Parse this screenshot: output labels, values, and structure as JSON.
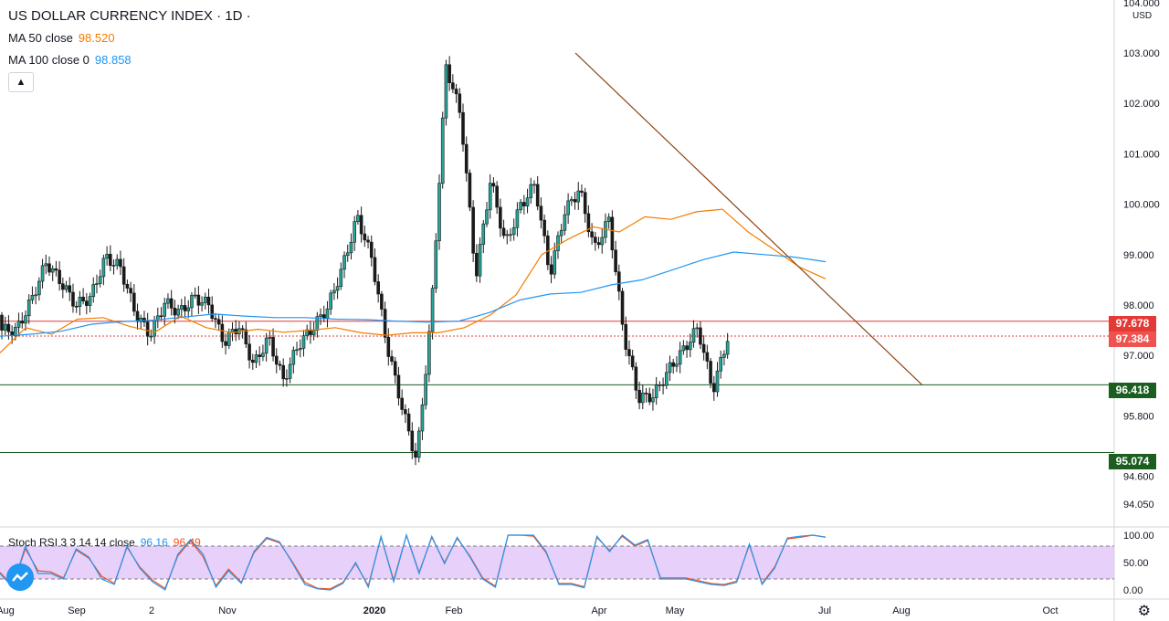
{
  "header": {
    "title": "US DOLLAR CURRENCY INDEX · 1D ·",
    "ma50_label": "MA 50 close",
    "ma50_value": "98.520",
    "ma100_label": "MA 100 close 0",
    "ma100_value": "98.858",
    "collapse_icon": "chevron-up-icon"
  },
  "currency": "USD",
  "colors": {
    "up": "#26a69a",
    "down": "#ef5350",
    "candle_body": "#1a1a1a",
    "ma50": "#f57c00",
    "ma100": "#2196f3",
    "trendline": "#8b4513",
    "resistance": "#e53935",
    "support": "#1b5e20",
    "stoch_k": "#2196f3",
    "stoch_d": "#f4511e",
    "stoch_band": "#e1c4f7"
  },
  "price_labels": {
    "resistance": "97.678",
    "last": "97.384",
    "support1": "96.418",
    "support2": "95.074"
  },
  "stoch": {
    "label": "Stoch RSI 3 3 14 14 close",
    "k_value": "96.16",
    "d_value": "96.49",
    "ticks": [
      "100.00",
      "50.00",
      "0.00"
    ]
  },
  "x_labels": [
    "Aug",
    "Sep",
    "2",
    "Nov",
    "2020",
    "Feb",
    "Apr",
    "May",
    "Jul",
    "Aug",
    "Oct"
  ],
  "chart_data": {
    "type": "candlestick",
    "title": "US DOLLAR CURRENCY INDEX · 1D",
    "y_ticks": [
      "104.000",
      "103.000",
      "102.000",
      "101.000",
      "100.000",
      "99.000",
      "98.000",
      "97.000",
      "95.800",
      "94.600",
      "94.050"
    ],
    "waypoints": [
      [
        97.8,
        97.2
      ],
      [
        97.6,
        97.4
      ],
      [
        98.4,
        97.8
      ],
      [
        99.2,
        98.5
      ],
      [
        98.7,
        98.2
      ],
      [
        98.4,
        97.6
      ],
      [
        98.3,
        98.0
      ],
      [
        99.4,
        98.5
      ],
      [
        98.9,
        98.6
      ],
      [
        98.2,
        97.5
      ],
      [
        97.4,
        97.4
      ],
      [
        98.2,
        97.9
      ],
      [
        98.0,
        97.7
      ],
      [
        98.3,
        98.0
      ],
      [
        98.1,
        97.9
      ],
      [
        97.3,
        97.2
      ],
      [
        97.7,
        97.5
      ],
      [
        96.9,
        96.7
      ],
      [
        97.6,
        97.1
      ],
      [
        96.5,
        96.5
      ],
      [
        97.3,
        97.1
      ],
      [
        97.7,
        97.4
      ],
      [
        98.2,
        97.7
      ],
      [
        99.0,
        98.5
      ],
      [
        99.8,
        99.7
      ],
      [
        99.0,
        98.8
      ],
      [
        97.4,
        97.0
      ],
      [
        96.2,
        95.8
      ],
      [
        95.0,
        94.8
      ],
      [
        98.5,
        97.2
      ],
      [
        102.9,
        102.6
      ],
      [
        102.0,
        101.5
      ],
      [
        98.7,
        98.4
      ],
      [
        100.6,
        100.4
      ],
      [
        99.4,
        99.0
      ],
      [
        100.1,
        99.8
      ],
      [
        100.5,
        100.3
      ],
      [
        98.6,
        98.6
      ],
      [
        100.0,
        99.7
      ],
      [
        100.4,
        100.2
      ],
      [
        99.2,
        99.0
      ],
      [
        99.8,
        99.6
      ],
      [
        97.6,
        97.2
      ],
      [
        96.2,
        96.1
      ],
      [
        96.3,
        96.1
      ],
      [
        96.8,
        96.6
      ],
      [
        97.2,
        97.0
      ],
      [
        97.6,
        97.5
      ],
      [
        96.3,
        96.3
      ],
      [
        97.4,
        97.3
      ]
    ],
    "ma50": [
      [
        97.05,
        97.55
      ],
      [
        97.42,
        97.72
      ],
      [
        97.75,
        97.58
      ],
      [
        97.46,
        97.78
      ],
      [
        97.55,
        97.45
      ],
      [
        97.52,
        97.46
      ],
      [
        97.5,
        97.55
      ],
      [
        97.45,
        97.4
      ],
      [
        97.45,
        97.45
      ],
      [
        97.55,
        97.8
      ],
      [
        98.2,
        99.0
      ],
      [
        99.3,
        99.55
      ],
      [
        99.45,
        99.75
      ],
      [
        99.7,
        99.85
      ],
      [
        99.9,
        99.45
      ],
      [
        99.1,
        98.75
      ],
      [
        98.52
      ]
    ],
    "ma100": [
      [
        97.38,
        97.42
      ],
      [
        97.48,
        97.62
      ],
      [
        97.67,
        97.7
      ],
      [
        97.76,
        97.82
      ],
      [
        97.78,
        97.75
      ],
      [
        97.75,
        97.72
      ],
      [
        97.71,
        97.68
      ],
      [
        97.66,
        97.68
      ],
      [
        97.85,
        98.1
      ],
      [
        98.22,
        98.25
      ],
      [
        98.4,
        98.5
      ],
      [
        98.7,
        98.9
      ],
      [
        99.05,
        99.0
      ],
      [
        98.95,
        98.858
      ]
    ],
    "trendline": [
      [
        103.0,
        96.41
      ]
    ],
    "levels": [
      97.678,
      97.384,
      96.418,
      95.074
    ],
    "stoch_k": [
      [
        30,
        5
      ],
      [
        80,
        30
      ],
      [
        30,
        20
      ],
      [
        75,
        60
      ],
      [
        20,
        10
      ],
      [
        80,
        40
      ],
      [
        15,
        0
      ],
      [
        65,
        92
      ],
      [
        65,
        5
      ],
      [
        35,
        12
      ],
      [
        70,
        96
      ],
      [
        88,
        50
      ],
      [
        10,
        2
      ],
      [
        0,
        12
      ],
      [
        50,
        5
      ],
      [
        98,
        15
      ],
      [
        100,
        30
      ],
      [
        98,
        48
      ],
      [
        96,
        60
      ],
      [
        20,
        5
      ],
      [
        100,
        100
      ],
      [
        100,
        70
      ],
      [
        10,
        10
      ],
      [
        4,
        98
      ],
      [
        70,
        100
      ],
      [
        82,
        92
      ],
      [
        20,
        20
      ],
      [
        20,
        15
      ],
      [
        10,
        8
      ],
      [
        14,
        84
      ],
      [
        10,
        40
      ],
      [
        95,
        98
      ],
      [
        100,
        96.16
      ]
    ],
    "stoch_d": [
      [
        32,
        8
      ],
      [
        75,
        35
      ],
      [
        33,
        22
      ],
      [
        73,
        58
      ],
      [
        25,
        12
      ],
      [
        78,
        42
      ],
      [
        18,
        3
      ],
      [
        62,
        90
      ],
      [
        60,
        8
      ],
      [
        38,
        14
      ],
      [
        68,
        94
      ],
      [
        86,
        52
      ],
      [
        14,
        3
      ],
      [
        2,
        14
      ],
      [
        48,
        8
      ],
      [
        96,
        18
      ],
      [
        100,
        32
      ],
      [
        96,
        50
      ],
      [
        94,
        62
      ],
      [
        22,
        7
      ],
      [
        100,
        100
      ],
      [
        98,
        68
      ],
      [
        12,
        12
      ],
      [
        6,
        96
      ],
      [
        72,
        98
      ],
      [
        80,
        90
      ],
      [
        22,
        22
      ],
      [
        22,
        17
      ],
      [
        12,
        10
      ],
      [
        16,
        82
      ],
      [
        12,
        42
      ],
      [
        93,
        96
      ],
      [
        100,
        96.49
      ]
    ],
    "stoch_ylim": [
      0,
      100
    ],
    "stoch_band": [
      20,
      80
    ]
  }
}
